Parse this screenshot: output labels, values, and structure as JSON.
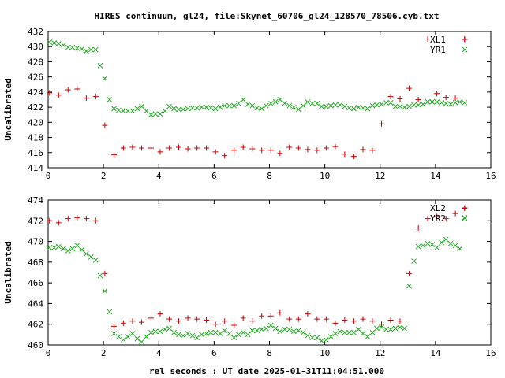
{
  "title": "HIRES continuum, gl24, file:Skynet_60706_gl24_128570_78506.cyb.txt",
  "xlabel": "rel seconds : UT date 2025-01-31T11:04:51.000",
  "colors": {
    "red": "#cc0000",
    "green": "#22aa22"
  },
  "chart_data": [
    {
      "type": "scatter",
      "ylabel": "Uncalibrated",
      "xlim": [
        0,
        16
      ],
      "ylim": [
        414,
        432
      ],
      "xticks": [
        0,
        2,
        4,
        6,
        8,
        10,
        12,
        14,
        16
      ],
      "yticks": [
        414,
        416,
        418,
        420,
        422,
        424,
        426,
        428,
        430,
        432
      ],
      "legend": "top-right",
      "series": [
        {
          "name": "XL1",
          "marker": "+",
          "color": "#cc0000",
          "x": [
            0.05,
            0.22,
            0.38,
            0.55,
            0.72,
            0.88,
            1.05,
            1.22,
            1.38,
            1.55,
            1.72,
            1.88,
            2.05,
            2.22,
            2.38,
            2.55,
            2.72,
            2.88,
            3.05,
            3.22,
            3.38,
            3.55,
            3.72,
            3.88,
            4.05,
            4.22,
            4.38,
            4.55,
            4.72,
            4.88,
            5.05,
            5.22,
            5.38,
            5.55,
            5.72,
            5.88,
            6.05,
            6.22,
            6.38,
            6.55,
            6.72,
            6.88,
            7.05,
            7.22,
            7.38,
            7.55,
            7.72,
            7.88,
            8.05,
            8.22,
            8.38,
            8.55,
            8.72,
            8.88,
            9.05,
            9.22,
            9.38,
            9.55,
            9.72,
            9.88,
            10.05,
            10.22,
            10.38,
            10.55,
            10.72,
            10.88,
            11.05,
            11.22,
            11.38,
            11.55,
            11.72,
            11.88,
            12.05,
            12.22,
            12.38,
            12.55,
            12.72,
            12.88,
            13.05,
            13.22,
            13.38,
            13.55,
            13.72,
            13.88,
            14.05,
            14.22,
            14.38,
            14.55,
            14.72,
            14.88,
            15.05
          ],
          "y": [
            423.9,
            423.8,
            423.6,
            423.7,
            424.3,
            424.2,
            424.4,
            424.0,
            423.2,
            423.3,
            423.4,
            421.5,
            419.6,
            418.0,
            415.7,
            416.3,
            416.6,
            416.6,
            416.7,
            416.7,
            416.6,
            416.7,
            416.6,
            416.4,
            416.1,
            416.3,
            416.6,
            416.9,
            416.7,
            416.3,
            416.5,
            416.4,
            416.6,
            416.8,
            416.6,
            415.9,
            416.1,
            416.3,
            415.6,
            415.8,
            416.3,
            416.8,
            416.7,
            417.0,
            416.5,
            416.6,
            416.3,
            416.1,
            416.3,
            416.2,
            415.9,
            416.4,
            416.7,
            416.5,
            416.6,
            416.1,
            416.4,
            416.5,
            416.3,
            416.5,
            416.6,
            416.6,
            416.8,
            416.5,
            415.8,
            416.4,
            415.5,
            416.2,
            416.4,
            416.2,
            416.3,
            416.7,
            419.8,
            422.0,
            423.4,
            423.7,
            423.1,
            423.2,
            424.5,
            424.1,
            423.0,
            424.2,
            431.0,
            424.0,
            423.8,
            423.2,
            423.3,
            423.1,
            423.2,
            422.9,
            431.0
          ],
          "show": [
            1,
            0,
            1,
            0,
            1,
            0,
            1,
            0,
            1,
            0,
            1,
            0,
            1,
            0,
            1,
            0,
            1,
            0,
            1,
            0,
            1,
            0,
            1,
            0,
            1,
            0,
            1,
            0,
            1,
            0,
            1,
            0,
            1,
            0,
            1,
            0,
            1,
            0,
            1,
            0,
            1,
            0,
            1,
            0,
            1,
            0,
            1,
            0,
            1,
            0,
            1,
            0,
            1,
            0,
            1,
            0,
            1,
            0,
            1,
            0,
            1,
            0,
            1,
            0,
            1,
            0,
            1,
            0,
            1,
            0,
            1,
            0,
            1,
            0,
            1,
            0,
            1,
            0,
            1,
            0,
            1,
            0,
            1,
            0,
            1,
            0,
            1,
            0,
            1,
            0,
            1
          ]
        },
        {
          "name": "YR1",
          "marker": "x",
          "color": "#22aa22",
          "x": [
            0.05,
            0.22,
            0.38,
            0.55,
            0.72,
            0.88,
            1.05,
            1.22,
            1.38,
            1.55,
            1.72,
            1.88,
            2.05,
            2.22,
            2.38,
            2.55,
            2.72,
            2.88,
            3.05,
            3.22,
            3.38,
            3.55,
            3.72,
            3.88,
            4.05,
            4.22,
            4.38,
            4.55,
            4.72,
            4.88,
            5.05,
            5.22,
            5.38,
            5.55,
            5.72,
            5.88,
            6.05,
            6.22,
            6.38,
            6.55,
            6.72,
            6.88,
            7.05,
            7.22,
            7.38,
            7.55,
            7.72,
            7.88,
            8.05,
            8.22,
            8.38,
            8.55,
            8.72,
            8.88,
            9.05,
            9.22,
            9.38,
            9.55,
            9.72,
            9.88,
            10.05,
            10.22,
            10.38,
            10.55,
            10.72,
            10.88,
            11.05,
            11.22,
            11.38,
            11.55,
            11.72,
            11.88,
            12.05,
            12.22,
            12.38,
            12.55,
            12.72,
            12.88,
            13.05,
            13.22,
            13.38,
            13.55,
            13.72,
            13.88,
            14.05,
            14.22,
            14.38,
            14.55,
            14.72,
            14.88,
            15.05
          ],
          "y": [
            430.6,
            430.5,
            430.4,
            430.2,
            429.9,
            429.9,
            429.8,
            429.7,
            429.4,
            429.6,
            429.6,
            427.5,
            425.8,
            423.0,
            421.8,
            421.6,
            421.5,
            421.5,
            421.5,
            421.8,
            422.1,
            421.5,
            421.0,
            421.1,
            421.1,
            421.5,
            422.1,
            421.8,
            421.7,
            421.7,
            421.8,
            421.9,
            421.9,
            422.0,
            422.0,
            421.9,
            421.8,
            422.0,
            422.2,
            422.2,
            422.2,
            422.5,
            423.0,
            422.4,
            422.2,
            421.9,
            421.8,
            422.2,
            422.5,
            422.7,
            423.0,
            422.5,
            422.2,
            422.0,
            421.7,
            422.2,
            422.7,
            422.5,
            422.5,
            422.1,
            422.1,
            422.2,
            422.3,
            422.3,
            422.1,
            421.9,
            421.8,
            422.0,
            421.9,
            421.8,
            422.2,
            422.3,
            422.4,
            422.6,
            422.6,
            422.1,
            422.1,
            422.0,
            422.1,
            422.3,
            422.3,
            422.4,
            422.7,
            422.7,
            422.7,
            422.6,
            422.5,
            422.4,
            422.6,
            422.7,
            422.6
          ],
          "show": []
        }
      ]
    },
    {
      "type": "scatter",
      "ylabel": "Uncalibrated",
      "xlim": [
        0,
        16
      ],
      "ylim": [
        460,
        474
      ],
      "xticks": [
        0,
        2,
        4,
        6,
        8,
        10,
        12,
        14,
        16
      ],
      "yticks": [
        460,
        462,
        464,
        466,
        468,
        470,
        472,
        474
      ],
      "legend": "top-right",
      "series": [
        {
          "name": "XL2",
          "marker": "+",
          "color": "#cc0000",
          "x": [
            0.05,
            0.22,
            0.38,
            0.55,
            0.72,
            0.88,
            1.05,
            1.22,
            1.38,
            1.55,
            1.72,
            1.88,
            2.05,
            2.22,
            2.38,
            2.55,
            2.72,
            2.88,
            3.05,
            3.22,
            3.38,
            3.55,
            3.72,
            3.88,
            4.05,
            4.22,
            4.38,
            4.55,
            4.72,
            4.88,
            5.05,
            5.22,
            5.38,
            5.55,
            5.72,
            5.88,
            6.05,
            6.22,
            6.38,
            6.55,
            6.72,
            6.88,
            7.05,
            7.22,
            7.38,
            7.55,
            7.72,
            7.88,
            8.05,
            8.22,
            8.38,
            8.55,
            8.72,
            8.88,
            9.05,
            9.22,
            9.38,
            9.55,
            9.72,
            9.88,
            10.05,
            10.22,
            10.38,
            10.55,
            10.72,
            10.88,
            11.05,
            11.22,
            11.38,
            11.55,
            11.72,
            11.88,
            12.05,
            12.22,
            12.38,
            12.55,
            12.72,
            12.88,
            13.05,
            13.22,
            13.38,
            13.55,
            13.72,
            13.88,
            14.05,
            14.22,
            14.38,
            14.55,
            14.72,
            14.88,
            15.05
          ],
          "y": [
            472.0,
            471.9,
            471.8,
            472.0,
            472.2,
            472.3,
            472.3,
            472.2,
            472.2,
            472.1,
            472.0,
            469.5,
            466.9,
            464.0,
            461.8,
            461.9,
            462.1,
            462.2,
            462.3,
            462.4,
            462.2,
            462.5,
            462.6,
            462.9,
            463.0,
            462.7,
            462.5,
            462.3,
            462.3,
            462.5,
            462.6,
            462.4,
            462.5,
            462.3,
            462.4,
            462.3,
            462.0,
            462.2,
            462.3,
            461.8,
            461.9,
            462.3,
            462.6,
            462.4,
            462.3,
            462.5,
            462.8,
            462.8,
            462.8,
            462.9,
            463.1,
            462.6,
            462.5,
            462.1,
            462.5,
            462.8,
            463.0,
            463.0,
            462.5,
            462.3,
            462.5,
            462.4,
            462.1,
            462.3,
            462.4,
            462.3,
            462.3,
            462.4,
            462.5,
            462.4,
            462.3,
            462.2,
            462.0,
            462.5,
            462.4,
            462.5,
            462.3,
            462.2,
            466.9,
            469.0,
            471.3,
            471.8,
            472.2,
            472.0,
            472.4,
            472.2,
            472.2,
            472.4,
            472.7,
            472.6,
            473.2
          ],
          "show": [
            1,
            0,
            1,
            0,
            1,
            0,
            1,
            0,
            1,
            0,
            1,
            0,
            1,
            0,
            1,
            0,
            1,
            0,
            1,
            0,
            1,
            0,
            1,
            0,
            1,
            0,
            1,
            0,
            1,
            0,
            1,
            0,
            1,
            0,
            1,
            0,
            1,
            0,
            1,
            0,
            1,
            0,
            1,
            0,
            1,
            0,
            1,
            0,
            1,
            0,
            1,
            0,
            1,
            0,
            1,
            0,
            1,
            0,
            1,
            0,
            1,
            0,
            1,
            0,
            1,
            0,
            1,
            0,
            1,
            0,
            1,
            0,
            1,
            0,
            1,
            0,
            1,
            0,
            1,
            0,
            1,
            0,
            1,
            0,
            1,
            0,
            1,
            0,
            1,
            0,
            1
          ]
        },
        {
          "name": "YR2",
          "marker": "x",
          "color": "#22aa22",
          "x": [
            0.05,
            0.22,
            0.38,
            0.55,
            0.72,
            0.88,
            1.05,
            1.22,
            1.38,
            1.55,
            1.72,
            1.88,
            2.05,
            2.22,
            2.38,
            2.55,
            2.72,
            2.88,
            3.05,
            3.22,
            3.38,
            3.55,
            3.72,
            3.88,
            4.05,
            4.22,
            4.38,
            4.55,
            4.72,
            4.88,
            5.05,
            5.22,
            5.38,
            5.55,
            5.72,
            5.88,
            6.05,
            6.22,
            6.38,
            6.55,
            6.72,
            6.88,
            7.05,
            7.22,
            7.38,
            7.55,
            7.72,
            7.88,
            8.05,
            8.22,
            8.38,
            8.55,
            8.72,
            8.88,
            9.05,
            9.22,
            9.38,
            9.55,
            9.72,
            9.88,
            10.05,
            10.22,
            10.38,
            10.55,
            10.72,
            10.88,
            11.05,
            11.22,
            11.38,
            11.55,
            11.72,
            11.88,
            12.05,
            12.22,
            12.38,
            12.55,
            12.72,
            12.88,
            13.05,
            13.22,
            13.38,
            13.55,
            13.72,
            13.88,
            14.05,
            14.22,
            14.38,
            14.55,
            14.72,
            14.88,
            15.05
          ],
          "y": [
            469.4,
            469.4,
            469.5,
            469.3,
            469.1,
            469.3,
            469.6,
            469.2,
            468.8,
            468.5,
            468.2,
            466.7,
            465.2,
            463.2,
            461.1,
            460.8,
            460.5,
            460.8,
            461.1,
            460.6,
            460.3,
            460.8,
            461.2,
            461.3,
            461.3,
            461.5,
            461.6,
            461.2,
            461.0,
            460.9,
            461.1,
            460.9,
            460.7,
            461.0,
            461.1,
            461.2,
            461.2,
            461.1,
            461.4,
            461.1,
            460.7,
            461.0,
            461.2,
            461.0,
            461.4,
            461.4,
            461.5,
            461.6,
            461.9,
            461.6,
            461.3,
            461.5,
            461.5,
            461.3,
            461.4,
            461.2,
            460.9,
            460.7,
            460.7,
            460.4,
            460.5,
            460.8,
            461.1,
            461.3,
            461.2,
            461.2,
            461.2,
            461.5,
            461.1,
            460.8,
            461.2,
            461.6,
            461.7,
            461.5,
            461.5,
            461.6,
            461.7,
            461.6,
            465.7,
            468.1,
            469.5,
            469.6,
            469.8,
            469.7,
            469.4,
            469.9,
            470.2,
            469.8,
            469.6,
            469.3,
            472.3
          ],
          "show": []
        }
      ]
    }
  ]
}
